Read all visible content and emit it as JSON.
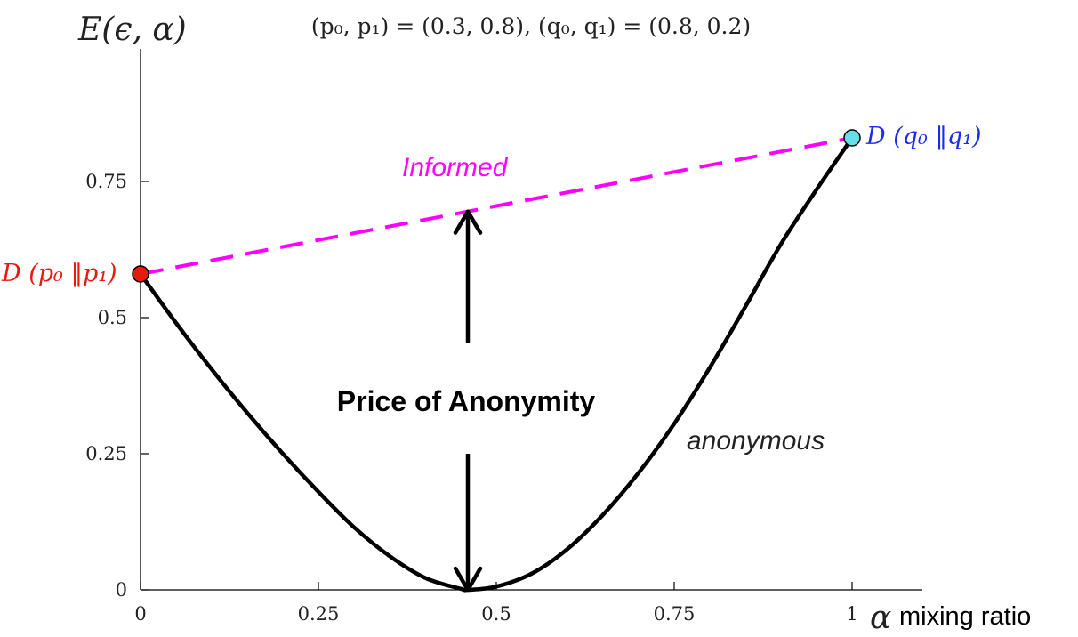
{
  "chart_data": {
    "type": "line",
    "title": "(p₀, p₁) = (0.3, 0.8), (q₀, q₁) = (0.8, 0.2)",
    "ylabel": "E(ϵ, α)",
    "xlabel_symbol": "α",
    "xlabel_text": "mixing ratio",
    "xlim": [
      0,
      1.1
    ],
    "ylim": [
      0,
      0.93
    ],
    "x_ticks": [
      0,
      0.25,
      0.5,
      0.75,
      1
    ],
    "x_tick_labels": [
      "0",
      "0.25",
      "0.5",
      "0.75",
      "1"
    ],
    "y_ticks": [
      0,
      0.25,
      0.5,
      0.75
    ],
    "y_tick_labels": [
      "0",
      "0.25",
      "0.5",
      "0.75"
    ],
    "grid": false,
    "series": [
      {
        "name": "anonymous",
        "color": "#000000",
        "style": "solid",
        "x": [
          0,
          0.05,
          0.1,
          0.15,
          0.2,
          0.25,
          0.3,
          0.35,
          0.4,
          0.45,
          0.46,
          0.5,
          0.55,
          0.6,
          0.65,
          0.7,
          0.75,
          0.8,
          0.85,
          0.9,
          0.95,
          1.0
        ],
        "y": [
          0.58,
          0.49,
          0.405,
          0.325,
          0.25,
          0.18,
          0.115,
          0.062,
          0.022,
          0.002,
          0.0,
          0.006,
          0.03,
          0.075,
          0.138,
          0.215,
          0.305,
          0.408,
          0.52,
          0.635,
          0.735,
          0.83
        ]
      },
      {
        "name": "Informed",
        "color": "#ff00ff",
        "style": "dashed",
        "x": [
          0,
          1
        ],
        "y": [
          0.58,
          0.83
        ]
      }
    ],
    "endpoints": [
      {
        "label": "D (p₀ ‖p₁)",
        "x": 0,
        "y": 0.58,
        "fill": "#e8190f",
        "text_color": "#e8190f"
      },
      {
        "label": "D (q₀ ‖q₁)",
        "x": 1,
        "y": 0.83,
        "fill": "#66e0e8",
        "text_color": "#1a2cf0"
      }
    ],
    "annotations": {
      "price_of_anonymity": "Price of Anonymity",
      "arrow_x": 0.46,
      "arrow_top_y": 0.695,
      "arrow_bottom_y": 0.0
    }
  }
}
